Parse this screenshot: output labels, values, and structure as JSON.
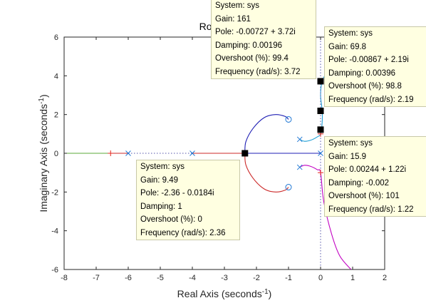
{
  "chart_data": {
    "type": "line",
    "title": "Root Locus",
    "xlabel": "Real Axis (seconds",
    "ylabel": "Imaginary Axis (seconds",
    "label_exponent": "-1",
    "xlim": [
      -8,
      2
    ],
    "ylim": [
      -6,
      6
    ],
    "xticks": [
      "-8",
      "-7",
      "-6",
      "-5",
      "-4",
      "-3",
      "-2",
      "-1",
      "0",
      "1",
      "2"
    ],
    "yticks": [
      "-6",
      "-4",
      "-2",
      "0",
      "2",
      "4",
      "6"
    ],
    "grid": false,
    "poles": [
      [
        -6,
        0
      ],
      [
        -4,
        0
      ],
      [
        0,
        0
      ],
      [
        -0.65,
        0.72
      ],
      [
        -0.65,
        -0.72
      ]
    ],
    "zeros": [
      [
        -1,
        1.75
      ],
      [
        -1,
        -1.75
      ]
    ],
    "closed_loop_poles": [
      [
        -6.55,
        0
      ],
      [
        0,
        1.0
      ],
      [
        0,
        -1.0
      ]
    ],
    "series": [
      {
        "color": "#5ba83a",
        "points": [
          [
            -8,
            0
          ],
          [
            -6.55,
            0
          ]
        ]
      },
      {
        "color": "#cc2a2a",
        "points": [
          [
            -6.55,
            0
          ],
          [
            -6,
            0
          ]
        ]
      },
      {
        "color": "#cc2a2a",
        "points": [
          [
            -4,
            0
          ],
          [
            -2.36,
            0
          ]
        ]
      },
      {
        "color": "#cc2a2a",
        "points": [
          [
            -2.36,
            0
          ],
          [
            -2.33,
            -0.6
          ],
          [
            -2.1,
            -1.3
          ],
          [
            -1.75,
            -1.85
          ],
          [
            -1.4,
            -2.0
          ],
          [
            -1.1,
            -1.9
          ],
          [
            -1,
            -1.75
          ]
        ]
      },
      {
        "color": "#1f1fb4",
        "points": [
          [
            -2.36,
            0
          ],
          [
            -2.33,
            0.6
          ],
          [
            -2.1,
            1.3
          ],
          [
            -1.75,
            1.85
          ],
          [
            -1.4,
            2.0
          ],
          [
            -1.1,
            1.9
          ],
          [
            -1,
            1.75
          ]
        ]
      },
      {
        "color": "#1f1fb4",
        "points": [
          [
            -2.36,
            0
          ],
          [
            0,
            0
          ]
        ]
      },
      {
        "color": "#1f9fd4",
        "points": [
          [
            -0.65,
            0.72
          ],
          [
            -0.5,
            0.62
          ],
          [
            -0.3,
            0.68
          ],
          [
            -0.1,
            0.85
          ],
          [
            0,
            1.0
          ],
          [
            0.05,
            1.6
          ],
          [
            0.05,
            2.2
          ],
          [
            0.0,
            3.0
          ],
          [
            0.05,
            3.72
          ],
          [
            0.2,
            4.2
          ]
        ]
      },
      {
        "color": "#c200c2",
        "points": [
          [
            -0.65,
            -0.72
          ],
          [
            -0.5,
            -0.62
          ],
          [
            -0.3,
            -0.68
          ],
          [
            -0.1,
            -0.85
          ],
          [
            0,
            -1.0
          ],
          [
            0.1,
            -2.5
          ],
          [
            0.35,
            -4.2
          ],
          [
            0.6,
            -5.3
          ],
          [
            0.95,
            -6
          ]
        ]
      },
      {
        "color": "#5555aa",
        "dashed": true,
        "points": [
          [
            -6,
            0
          ],
          [
            -4,
            0
          ]
        ]
      },
      {
        "color": "#5555aa",
        "dashed": true,
        "points": [
          [
            0,
            0
          ],
          [
            0,
            6
          ]
        ]
      },
      {
        "color": "#5555aa",
        "dashed": true,
        "points": [
          [
            0,
            0
          ],
          [
            0,
            -6
          ]
        ]
      }
    ],
    "datatips": [
      {
        "id": "tip-161",
        "point": [
          0,
          3.72
        ],
        "lines": [
          "System: sys",
          "Gain: 161",
          "Pole: -0.00727 + 3.72i",
          "Damping: 0.00196",
          "Overshoot (%): 99.4",
          "Frequency (rad/s): 3.72"
        ]
      },
      {
        "id": "tip-69",
        "point": [
          0,
          2.19
        ],
        "lines": [
          "System: sys",
          "Gain: 69.8",
          "Pole: -0.00867 + 2.19i",
          "Damping: 0.00396",
          "Overshoot (%): 98.8",
          "Frequency (rad/s): 2.19"
        ]
      },
      {
        "id": "tip-15",
        "point": [
          0,
          1.22
        ],
        "lines": [
          "System: sys",
          "Gain: 15.9",
          "Pole: 0.00244 + 1.22i",
          "Damping: -0.002",
          "Overshoot (%): 101",
          "Frequency (rad/s): 1.22"
        ]
      },
      {
        "id": "tip-9",
        "point": [
          -2.36,
          0
        ],
        "lines": [
          "System: sys",
          "Gain: 9.49",
          "Pole: -2.36 - 0.0184i",
          "Damping: 1",
          "Overshoot (%): 0",
          "Frequency (rad/s): 2.36"
        ]
      }
    ]
  }
}
